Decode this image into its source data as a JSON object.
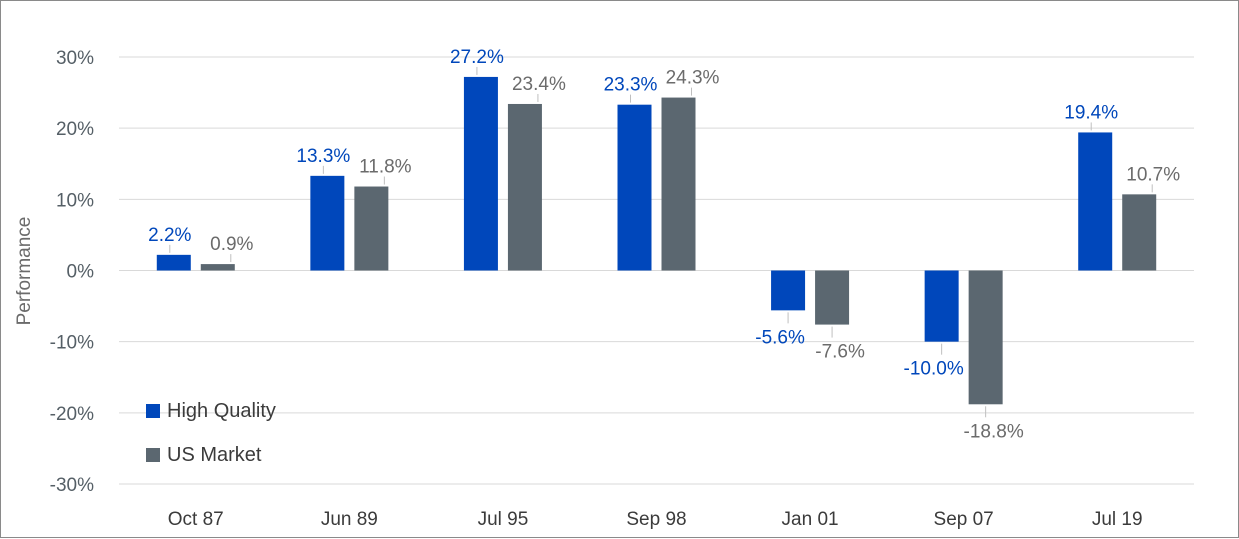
{
  "chart_data": {
    "type": "bar",
    "title": "",
    "xlabel": "",
    "ylabel": "Performance",
    "ylim": [
      -30,
      30
    ],
    "yticks": [
      30,
      20,
      10,
      0,
      -10,
      -20,
      -30
    ],
    "ytick_labels": [
      "30%",
      "20%",
      "10%",
      "0%",
      "-10%",
      "-20%",
      "-30%"
    ],
    "grid": true,
    "legend_position": "bottom-left",
    "categories": [
      "Oct 87",
      "Jun 89",
      "Jul 95",
      "Sep 98",
      "Jan 01",
      "Sep 07",
      "Jul 19"
    ],
    "series": [
      {
        "name": "High Quality",
        "color": "#0047bb",
        "values": [
          2.2,
          13.3,
          27.2,
          23.3,
          -5.6,
          -10.0,
          19.4
        ],
        "labels": [
          "2.2%",
          "13.3%",
          "27.2%",
          "23.3%",
          "-5.6%",
          "-10.0%",
          "19.4%"
        ]
      },
      {
        "name": "US Market",
        "color": "#5b6770",
        "label_color": "#6b6b6b",
        "values": [
          0.9,
          11.8,
          23.4,
          24.3,
          -7.6,
          -18.8,
          10.7
        ],
        "labels": [
          "0.9%",
          "11.8%",
          "23.4%",
          "24.3%",
          "-7.6%",
          "-18.8%",
          "10.7%"
        ]
      }
    ]
  }
}
